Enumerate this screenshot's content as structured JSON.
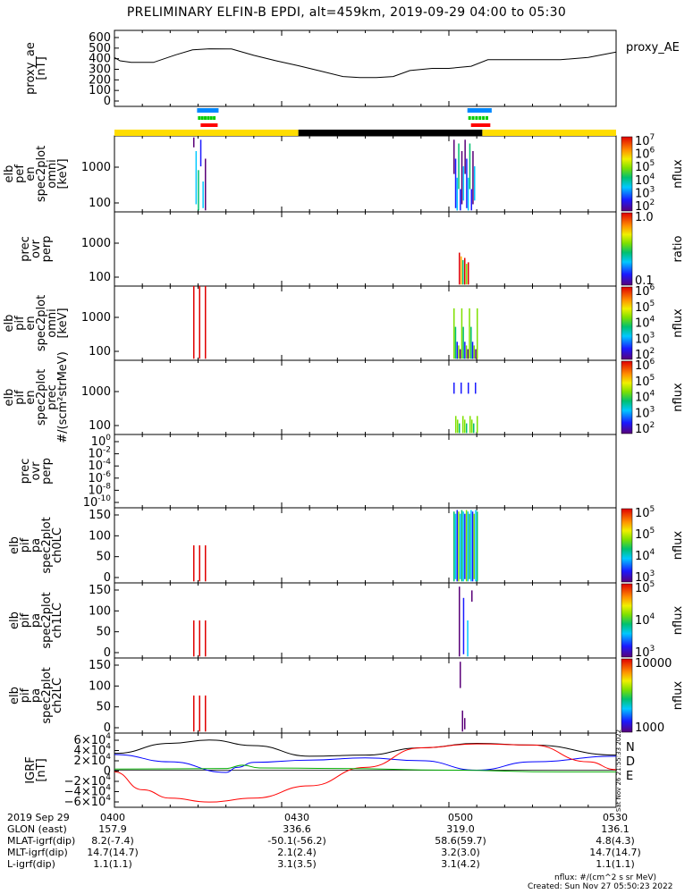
{
  "title": "PRELIMINARY ELFIN-B EPDI, alt=459km, 2019-09-29 04:00 to 05:30",
  "time_axis": {
    "start": "2019-09-29 04:00",
    "end": "2019-09-29 05:30",
    "tick_labels": [
      "0400",
      "0430",
      "0500",
      "0530"
    ],
    "tick_times": [
      "04:00",
      "04:30",
      "05:00",
      "05:30"
    ]
  },
  "panels": [
    {
      "id": "ae",
      "ylabel": [
        "proxy_ae",
        "[nT]"
      ],
      "legend": "proxy_AE",
      "yticks": [
        "600",
        "500",
        "400",
        "300",
        "200",
        "100",
        "0"
      ]
    },
    {
      "id": "pef",
      "ylabel": [
        "elb",
        "pef",
        "en",
        "spec2plot",
        "omni",
        "[keV]"
      ],
      "yticks": [
        "1000",
        "100"
      ],
      "colorbar": {
        "label": "nflux",
        "ticks": [
          "10",
          "10",
          "10",
          "10",
          "10",
          "10"
        ],
        "exponents": [
          "7",
          "6",
          "5",
          "4",
          "3",
          "2"
        ]
      }
    },
    {
      "id": "pef_ratio",
      "ylabel": [
        "prec",
        "ovr",
        "perp"
      ],
      "yticks": [
        "1000",
        "100"
      ],
      "colorbar": {
        "label": "ratio",
        "ticks": [
          "1.0",
          "0.1"
        ]
      }
    },
    {
      "id": "pif_omni",
      "ylabel": [
        "elb",
        "pif",
        "en",
        "spec2plot",
        "omni",
        "[keV]"
      ],
      "yticks": [
        "1000",
        "100"
      ],
      "colorbar": {
        "label": "nflux",
        "ticks": [
          "10",
          "10",
          "10",
          "10",
          "10"
        ],
        "exponents": [
          "6",
          "5",
          "4",
          "3",
          "2"
        ]
      }
    },
    {
      "id": "pif_prec",
      "ylabel": [
        "elb",
        "pif",
        "en",
        "spec2plot",
        "prec",
        "#/(scm²strMeV)"
      ],
      "yticks": [
        "1000",
        "100"
      ],
      "colorbar": {
        "label": "nflux",
        "ticks": [
          "10",
          "10",
          "10",
          "10",
          "10"
        ],
        "exponents": [
          "6",
          "5",
          "4",
          "3",
          "2"
        ]
      }
    },
    {
      "id": "pif_ratio",
      "ylabel": [
        "prec",
        "ovr",
        "perp"
      ],
      "yticks": [
        "10",
        "10",
        "10",
        "10",
        "10",
        "10"
      ],
      "yexponents": [
        "0",
        "-2",
        "-4",
        "-6",
        "-8",
        "-10"
      ]
    },
    {
      "id": "pa_ch0",
      "ylabel": [
        "elb",
        "pif",
        "pa",
        "spec2plot",
        "ch0LC"
      ],
      "yticks": [
        "150",
        "100",
        "50",
        "0"
      ],
      "colorbar": {
        "label": "nflux",
        "ticks": [
          "10",
          "10",
          "10",
          "10"
        ],
        "exponents": [
          "5",
          "5",
          "4",
          "3"
        ]
      }
    },
    {
      "id": "pa_ch1",
      "ylabel": [
        "elb",
        "pif",
        "pa",
        "spec2plot",
        "ch1LC"
      ],
      "yticks": [
        "150",
        "100",
        "50",
        "0"
      ],
      "colorbar": {
        "label": "nflux",
        "ticks": [
          "10",
          "10",
          "10"
        ],
        "exponents": [
          "5",
          "4",
          "3"
        ]
      }
    },
    {
      "id": "pa_ch2",
      "ylabel": [
        "elb",
        "pif",
        "pa",
        "spec2plot",
        "ch2LC"
      ],
      "yticks": [
        "150",
        "100",
        "50",
        "0"
      ],
      "colorbar": {
        "label": "nflux",
        "ticks": [
          "10000",
          "1000"
        ]
      }
    },
    {
      "id": "igrf",
      "ylabel": [
        "IGRF",
        "[nT]"
      ],
      "legend": [
        "N",
        "D",
        "E"
      ],
      "yticks": [
        "6×10",
        "4×10",
        "2×10",
        "0",
        "−2×10",
        "−4×10",
        "−6×10"
      ],
      "yexponents": [
        "4",
        "4",
        "4",
        "",
        "4",
        "4",
        "4"
      ],
      "side_note": "Sat Nov 26 21:55:33 2022"
    }
  ],
  "chart_data": {
    "type": "line",
    "title": "PRELIMINARY ELFIN-B EPDI, alt=459km, 2019-09-29 04:00 to 05:30",
    "x_unit": "minutes after 04:00",
    "series": [
      {
        "name": "proxy_AE",
        "ylim": [
          0,
          600
        ],
        "x": [
          0,
          1,
          3,
          7,
          11,
          14,
          17,
          21,
          25,
          29,
          33,
          37,
          41,
          44,
          47,
          50,
          53,
          57,
          60,
          64,
          67,
          70,
          75,
          80,
          85,
          90
        ],
        "y": [
          400,
          370,
          355,
          355,
          425,
          470,
          480,
          478,
          420,
          370,
          325,
          275,
          225,
          215,
          215,
          225,
          280,
          300,
          300,
          320,
          380,
          380,
          380,
          380,
          400,
          450
        ]
      },
      {
        "name": "N",
        "color": "#000000",
        "ylim": [
          -60000,
          60000
        ],
        "x": [
          0,
          10,
          17,
          25,
          35,
          45,
          55,
          65,
          75,
          90
        ],
        "y": [
          30000,
          48000,
          54000,
          44000,
          25000,
          27000,
          40000,
          48000,
          45000,
          27000
        ]
      },
      {
        "name": "D",
        "color": "#0000ff",
        "ylim": [
          -60000,
          60000
        ],
        "x": [
          0,
          10,
          20,
          22,
          25,
          35,
          45,
          55,
          65,
          75,
          90
        ],
        "y": [
          28000,
          15000,
          -4000,
          5000,
          14000,
          18000,
          22000,
          17000,
          0,
          15000,
          25000
        ]
      },
      {
        "name": "E",
        "color": "#ff0000",
        "ylim": [
          -60000,
          60000
        ],
        "x": [
          0,
          5,
          10,
          17,
          25,
          35,
          45,
          55,
          65,
          75,
          85,
          90
        ],
        "y": [
          -3000,
          -35000,
          -50000,
          -57000,
          -50000,
          -28000,
          5000,
          40000,
          47000,
          45000,
          15000,
          1000
        ]
      },
      {
        "name": "green",
        "color": "#00aa00",
        "ylim": [
          -60000,
          60000
        ],
        "x": [
          0,
          20,
          23,
          26,
          40,
          60,
          80,
          90
        ],
        "y": [
          2000,
          3000,
          9000,
          4000,
          3000,
          0,
          -3000,
          -3000
        ]
      }
    ],
    "orbit_bar": [
      {
        "from": 0,
        "to": 33,
        "color": "#ffdd00"
      },
      {
        "from": 33,
        "to": 66,
        "color": "#000000"
      },
      {
        "from": 66,
        "to": 90,
        "color": "#ffdd00"
      }
    ],
    "science_zones": [
      {
        "from": 14.5,
        "to": 19
      },
      {
        "from": 63,
        "to": 68
      }
    ]
  },
  "footer": {
    "rows": [
      {
        "label": "2019 Sep 29",
        "values": [
          "0400",
          "0430",
          "0500",
          "0530"
        ]
      },
      {
        "label": "GLON (east)",
        "values": [
          "157.9",
          "336.6",
          "319.0",
          "136.1"
        ]
      },
      {
        "label": "MLAT-igrf(dip)",
        "values": [
          "8.2(-7.4)",
          "-50.1(-56.2)",
          "58.6(59.7)",
          "4.8(4.3)"
        ]
      },
      {
        "label": "MLT-igrf(dip)",
        "values": [
          "14.7(14.7)",
          "2.1(2.4)",
          "3.2(3.0)",
          "14.7(14.7)"
        ]
      },
      {
        "label": "L-igrf(dip)",
        "values": [
          "1.1(1.1)",
          "3.1(3.5)",
          "3.1(4.2)",
          "1.1(1.1)"
        ]
      }
    ],
    "units_note": "nflux: #/(cm^2 s sr MeV)",
    "created": "Created: Sun Nov 27 05:50:23 2022"
  },
  "colors": {
    "line": "#000000",
    "blue_bar": "#0088ff",
    "green_bar": "#00cc00",
    "red_bar": "#ff0000",
    "orbit_yellow": "#ffdd00"
  }
}
